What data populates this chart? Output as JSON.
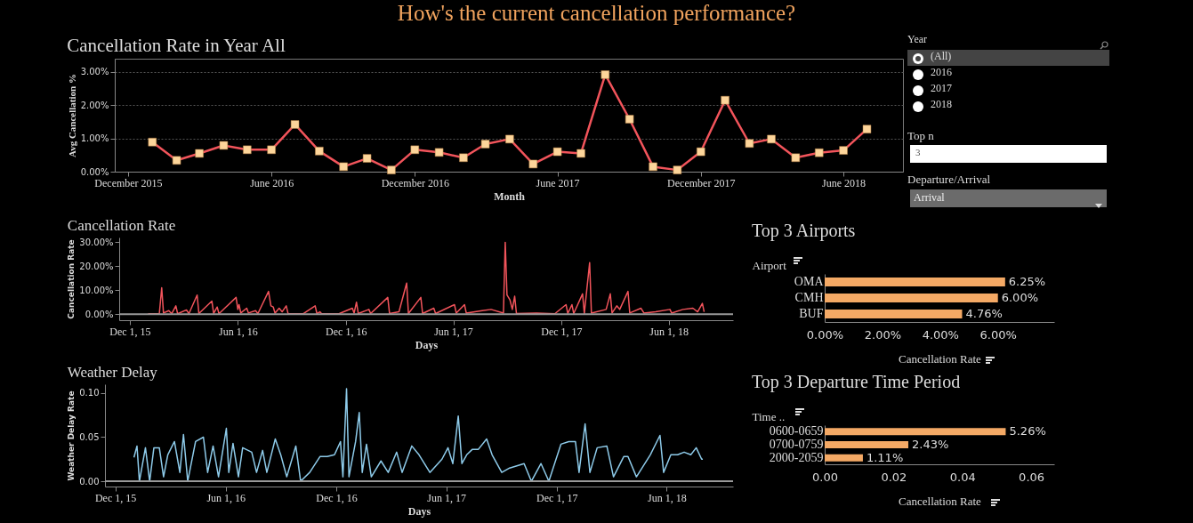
{
  "chart_data": [
    {
      "type": "other",
      "title": "How's the current cancellation performance?",
      "annotations": [
        "Year",
        "(All)",
        "2016",
        "2017",
        "2018",
        "Top n",
        "3",
        "Departure/Arrival",
        "Arrival"
      ]
    },
    {
      "type": "line",
      "title": "Cancellation Rate in Year All",
      "xlabel": "Month",
      "ylabel": "Avg Cancellation %",
      "marker": "square",
      "grid": "y",
      "x": [
        "2016-01-01",
        "2016-02-01",
        "2016-03-01",
        "2016-04-01",
        "2016-05-01",
        "2016-06-01",
        "2016-07-01",
        "2016-08-01",
        "2016-09-01",
        "2016-10-01",
        "2016-11-01",
        "2016-12-01",
        "2017-01-01",
        "2017-02-01",
        "2017-03-01",
        "2017-04-01",
        "2017-05-01",
        "2017-06-01",
        "2017-07-01",
        "2017-08-01",
        "2017-09-01",
        "2017-10-01",
        "2017-11-01",
        "2017-12-01",
        "2018-01-01",
        "2018-02-01",
        "2018-03-01",
        "2018-04-01",
        "2018-05-01",
        "2018-06-01",
        "2018-07-01"
      ],
      "series": [
        {
          "color": "#f2545b",
          "colors": [
            "#fdd59a",
            "#fdd59a",
            "#fdd59a",
            "#fdd59a",
            "#fdd59a",
            "#fdd59a",
            "#fdd59a",
            "#fdd59a",
            "#fdd59a",
            "#fdd59a",
            "#fdd59a",
            "#fdd59a",
            "#fdd59a",
            "#fdd59a",
            "#fdd59a",
            "#fdd59a",
            "#fdd59a",
            "#fdd59a",
            "#fdd59a",
            "#fdd59a",
            "#fdd59a",
            "#fdd59a",
            "#fdd59a",
            "#fdd59a",
            "#fdd59a",
            "#fdd59a",
            "#fdd59a",
            "#fdd59a",
            "#fdd59a",
            "#fdd59a",
            "#fdd59a"
          ],
          "values": [
            0.89,
            0.34,
            0.55,
            0.79,
            0.66,
            0.66,
            1.42,
            0.62,
            0.15,
            0.4,
            0.05,
            0.66,
            0.58,
            0.42,
            0.83,
            0.98,
            0.23,
            0.6,
            0.55,
            2.92,
            1.58,
            0.15,
            0.05,
            0.6,
            2.15,
            0.85,
            0.98,
            0.42,
            0.57,
            0.64,
            1.28
          ]
        }
      ],
      "xlim": [
        "2015-11-14",
        "2018-08-16"
      ],
      "xticks": [
        {
          "value": "2015-12-01",
          "label": "December 2015"
        },
        {
          "value": "2016-06-01",
          "label": "June 2016"
        },
        {
          "value": "2016-12-01",
          "label": "December 2016"
        },
        {
          "value": "2017-06-01",
          "label": "June 2017"
        },
        {
          "value": "2017-12-01",
          "label": "December 2017"
        },
        {
          "value": "2018-06-01",
          "label": "June 2018"
        }
      ],
      "ylim": [
        0,
        3.4
      ],
      "yticks": [
        {
          "value": 0,
          "label": "0.00%"
        },
        {
          "value": 1,
          "label": "1.00%"
        },
        {
          "value": 2,
          "label": "2.00%"
        },
        {
          "value": 3,
          "label": "3.00%"
        }
      ]
    },
    {
      "type": "line",
      "title": "Cancellation Rate",
      "xlabel": "Days",
      "ylabel": "Cancellation Rate",
      "x": [
        "2016-01-01",
        "2016-01-20",
        "2016-01-24",
        "2016-01-27",
        "2016-02-05",
        "2016-02-10",
        "2016-02-17",
        "2016-02-20",
        "2016-03-06",
        "2016-03-10",
        "2016-03-24",
        "2016-03-27",
        "2016-04-18",
        "2016-04-21",
        "2016-04-27",
        "2016-04-30",
        "2016-05-29",
        "2016-06-01",
        "2016-06-03",
        "2016-06-06",
        "2016-06-16",
        "2016-06-19",
        "2016-07-01",
        "2016-07-05",
        "2016-07-23",
        "2016-07-27",
        "2016-07-31",
        "2016-08-03",
        "2016-08-10",
        "2016-08-15",
        "2016-08-22",
        "2016-08-25",
        "2016-09-20",
        "2016-10-10",
        "2016-10-13",
        "2016-10-18",
        "2016-10-21",
        "2016-11-20",
        "2016-12-12",
        "2016-12-15",
        "2016-12-19",
        "2016-12-22",
        "2017-01-09",
        "2017-01-12",
        "2017-02-10",
        "2017-02-13",
        "2017-03-01",
        "2017-03-14",
        "2017-03-17",
        "2017-04-07",
        "2017-04-10",
        "2017-04-29",
        "2017-05-02",
        "2017-06-03",
        "2017-06-06",
        "2017-06-20",
        "2017-06-23",
        "2017-07-20",
        "2017-08-04",
        "2017-08-25",
        "2017-08-28",
        "2017-08-31",
        "2017-09-05",
        "2017-09-09",
        "2017-09-13",
        "2017-09-16",
        "2017-10-20",
        "2017-11-20",
        "2017-12-09",
        "2017-12-12",
        "2017-12-19",
        "2017-12-22",
        "2018-01-06",
        "2018-01-09",
        "2018-01-18",
        "2018-01-21",
        "2018-02-15",
        "2018-02-22",
        "2018-02-25",
        "2018-03-05",
        "2018-03-10",
        "2018-03-24",
        "2018-03-27",
        "2018-04-15",
        "2018-04-20",
        "2018-05-10",
        "2018-06-03",
        "2018-06-06",
        "2018-06-25",
        "2018-07-12",
        "2018-07-20",
        "2018-07-28",
        "2018-07-31"
      ],
      "series": [
        {
          "color": "#f2545b",
          "values": [
            0.2,
            0.3,
            11,
            0.5,
            1.5,
            0.2,
            3.5,
            0.2,
            1.8,
            0.2,
            8,
            0.3,
            5.5,
            0.3,
            3,
            0.2,
            7,
            2,
            4,
            0.5,
            2.5,
            0.5,
            1.5,
            0.3,
            9.5,
            3.5,
            3,
            0.5,
            2.5,
            1,
            3.5,
            0.3,
            0.2,
            3.5,
            0.2,
            1,
            0.2,
            0.3,
            2.5,
            0.5,
            5,
            0.3,
            2,
            0.3,
            7,
            0.3,
            1,
            13,
            0.3,
            7,
            0.3,
            2.5,
            0.3,
            4,
            0.5,
            4,
            0.5,
            1.5,
            2,
            0.5,
            30,
            8,
            6,
            2,
            7.5,
            0.3,
            0.5,
            0.2,
            4,
            0.3,
            4,
            0.3,
            8.5,
            0.3,
            21.5,
            0.5,
            2,
            8.5,
            0.5,
            3.5,
            2,
            9.5,
            0.5,
            2.5,
            0.5,
            1,
            2,
            0.5,
            2,
            2.5,
            1,
            4.5,
            1
          ]
        }
      ],
      "xlim": [
        "2015-11-13",
        "2018-09-18"
      ],
      "xticks": [
        {
          "value": "2015-12-01",
          "label": "Dec 1, 15"
        },
        {
          "value": "2016-06-01",
          "label": "Jun 1, 16"
        },
        {
          "value": "2016-12-01",
          "label": "Dec 1, 16"
        },
        {
          "value": "2017-06-01",
          "label": "Jun 1, 17"
        },
        {
          "value": "2017-12-01",
          "label": "Dec 1, 17"
        },
        {
          "value": "2018-06-01",
          "label": "Jun 1, 18"
        }
      ],
      "ylim": [
        -2.5,
        32
      ],
      "yticks": [
        {
          "value": 0,
          "label": "0.00%"
        },
        {
          "value": 10,
          "label": "10.00%"
        },
        {
          "value": 20,
          "label": "20.00%"
        },
        {
          "value": 30,
          "label": "30.00%"
        }
      ],
      "ref_lines": [
        {
          "axis": "y",
          "value": 0,
          "color": "#999999"
        }
      ]
    },
    {
      "type": "line",
      "title": "Weather Delay",
      "xlabel": "Days",
      "ylabel": "Weather Delay Rate",
      "x": [
        "2016-01-01",
        "2016-01-06",
        "2016-01-10",
        "2016-01-20",
        "2016-01-27",
        "2016-02-03",
        "2016-02-12",
        "2016-02-19",
        "2016-02-26",
        "2016-03-08",
        "2016-03-17",
        "2016-03-23",
        "2016-03-30",
        "2016-04-12",
        "2016-04-25",
        "2016-05-02",
        "2016-05-11",
        "2016-05-20",
        "2016-06-02",
        "2016-06-06",
        "2016-06-13",
        "2016-06-22",
        "2016-06-29",
        "2016-07-14",
        "2016-07-22",
        "2016-08-01",
        "2016-08-08",
        "2016-08-22",
        "2016-08-31",
        "2016-09-10",
        "2016-09-25",
        "2016-10-03",
        "2016-10-18",
        "2016-11-04",
        "2016-11-16",
        "2016-11-28",
        "2016-12-08",
        "2016-12-12",
        "2016-12-18",
        "2016-12-22",
        "2017-01-02",
        "2017-01-08",
        "2017-01-13",
        "2017-01-20",
        "2017-01-28",
        "2017-02-13",
        "2017-02-25",
        "2017-03-11",
        "2017-03-20",
        "2017-04-05",
        "2017-04-17",
        "2017-05-05",
        "2017-05-25",
        "2017-06-04",
        "2017-06-12",
        "2017-06-21",
        "2017-06-27",
        "2017-07-05",
        "2017-07-14",
        "2017-07-24",
        "2017-08-07",
        "2017-08-16",
        "2017-09-01",
        "2017-09-14",
        "2017-10-08",
        "2017-10-20",
        "2017-11-05",
        "2017-11-18",
        "2017-12-08",
        "2017-12-21",
        "2018-01-01",
        "2018-01-07",
        "2018-01-17",
        "2018-01-25",
        "2018-02-06",
        "2018-02-22",
        "2018-03-05",
        "2018-03-22",
        "2018-03-29",
        "2018-04-12",
        "2018-05-05",
        "2018-05-21",
        "2018-05-27",
        "2018-06-08",
        "2018-06-19",
        "2018-06-30",
        "2018-07-11",
        "2018-07-20",
        "2018-07-29",
        "2018-07-31"
      ],
      "series": [
        {
          "color": "#8ecbea",
          "values": [
            0.027,
            0.04,
            0,
            0.038,
            0,
            0.038,
            0.038,
            0.005,
            0.03,
            0.045,
            0.01,
            0.053,
            0,
            0.045,
            0.05,
            0.01,
            0.04,
            0.005,
            0.06,
            0.01,
            0.043,
            0.005,
            0.038,
            0.033,
            0.01,
            0.035,
            0.01,
            0.048,
            0.03,
            0.005,
            0.04,
            0,
            0.01,
            0.028,
            0.028,
            0.03,
            0.045,
            0.005,
            0.105,
            0.005,
            0.045,
            0.078,
            0.01,
            0.042,
            0.005,
            0.023,
            0.01,
            0.033,
            0.01,
            0.04,
            0.03,
            0.01,
            0.025,
            0.038,
            0.02,
            0.074,
            0.02,
            0.03,
            0.036,
            0.036,
            0.048,
            0.03,
            0.01,
            0.015,
            0.02,
            0,
            0.02,
            0,
            0.042,
            0.045,
            0.045,
            0.01,
            0.065,
            0.01,
            0.038,
            0.04,
            0.005,
            0.028,
            0.028,
            0.005,
            0.03,
            0.052,
            0.01,
            0.03,
            0.03,
            0.033,
            0.03,
            0.038,
            0.025,
            0.025
          ]
        }
      ],
      "xlim": [
        "2015-11-14",
        "2018-09-19"
      ],
      "xticks": [
        {
          "value": "2015-12-01",
          "label": "Dec 1, 15"
        },
        {
          "value": "2016-06-01",
          "label": "Jun 1, 16"
        },
        {
          "value": "2016-12-01",
          "label": "Dec 1, 16"
        },
        {
          "value": "2017-06-01",
          "label": "Jun 1, 17"
        },
        {
          "value": "2017-12-01",
          "label": "Dec 1, 17"
        },
        {
          "value": "2018-06-01",
          "label": "Jun 1, 18"
        }
      ],
      "ylim": [
        -0.006,
        0.11
      ],
      "yticks": [
        {
          "value": 0,
          "label": "0.00"
        },
        {
          "value": 0.05,
          "label": "0.05"
        },
        {
          "value": 0.1,
          "label": "0.10"
        }
      ],
      "ref_lines": [
        {
          "axis": "y",
          "value": 0,
          "color": "#999999"
        }
      ]
    },
    {
      "type": "bar",
      "orientation": "horizontal",
      "title": "Top 3 Airports",
      "ylabel": "Airport",
      "xlabel": "Cancellation Rate",
      "categories": [
        "OMA",
        "CMH",
        "BUF"
      ],
      "values": [
        6.25,
        6.0,
        4.76
      ],
      "value_labels": [
        "6.25%",
        "6.00%",
        "4.76%"
      ],
      "color": "#f4a965",
      "xlim": [
        0,
        7.95
      ],
      "xticks": [
        {
          "value": 0,
          "label": "0.00%"
        },
        {
          "value": 2,
          "label": "2.00%"
        },
        {
          "value": 4,
          "label": "4.00%"
        },
        {
          "value": 6,
          "label": "6.00%"
        }
      ]
    },
    {
      "type": "bar",
      "orientation": "horizontal",
      "title": "Top 3 Departure Time Period",
      "ylabel": "Time ..",
      "xlabel": "Cancellation Rate",
      "categories": [
        "0600-0659",
        "0700-0759",
        "2000-2059"
      ],
      "values": [
        0.0526,
        0.0243,
        0.0111
      ],
      "value_labels": [
        "5.26%",
        "2.43%",
        "1.11%"
      ],
      "color": "#f4a965",
      "xlim": [
        0,
        0.0667
      ],
      "xticks": [
        {
          "value": 0,
          "label": "0.00"
        },
        {
          "value": 0.02,
          "label": "0.02"
        },
        {
          "value": 0.04,
          "label": "0.04"
        },
        {
          "value": 0.06,
          "label": "0.06"
        }
      ]
    }
  ]
}
